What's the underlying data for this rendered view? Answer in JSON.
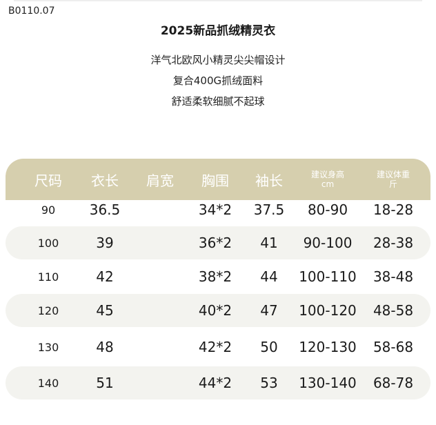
{
  "product_code": "B0110.07",
  "title": "2025新品抓绒精灵衣",
  "features": [
    "洋气北欧风小精灵尖尖帽设计",
    "复合400G抓绒面料",
    "舒适柔软细腻不起球"
  ],
  "colors": {
    "header_bg": "#d6cfae",
    "header_text": "#ffffff",
    "stripe_bg": "#f3f3ef"
  },
  "table": {
    "headers": [
      {
        "label": "尺码"
      },
      {
        "label": "衣长"
      },
      {
        "label": "肩宽"
      },
      {
        "label": "胸围"
      },
      {
        "label": "袖长"
      },
      {
        "label": "建议身高",
        "unit": "cm"
      },
      {
        "label": "建议体重",
        "unit": "斤"
      }
    ],
    "rows": [
      [
        "90",
        "36.5",
        "",
        "34*2",
        "37.5",
        "80-90",
        "18-28"
      ],
      [
        "100",
        "39",
        "",
        "36*2",
        "41",
        "90-100",
        "28-38"
      ],
      [
        "110",
        "42",
        "",
        "38*2",
        "44",
        "100-110",
        "38-48"
      ],
      [
        "120",
        "45",
        "",
        "40*2",
        "47",
        "100-120",
        "48-58"
      ],
      [
        "130",
        "48",
        "",
        "42*2",
        "50",
        "120-130",
        "58-68"
      ],
      [
        "140",
        "51",
        "",
        "44*2",
        "53",
        "130-140",
        "68-78"
      ]
    ]
  }
}
